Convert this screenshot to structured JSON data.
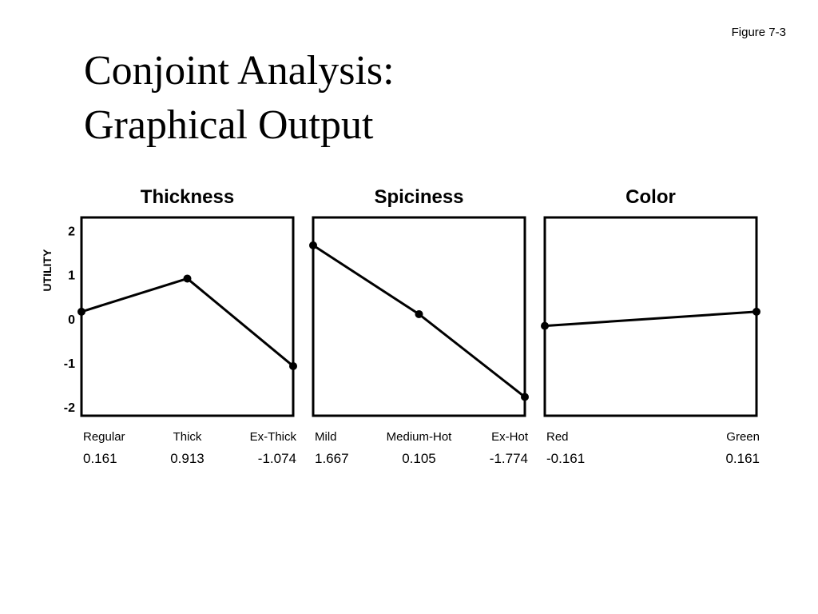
{
  "header": {
    "figure_label": "Figure 7-3",
    "title_line1": "Conjoint Analysis:",
    "title_line2": "Graphical Output"
  },
  "chart_data": [
    {
      "type": "line",
      "title": "Thickness",
      "ylabel": "UTILITY",
      "categories": [
        "Regular",
        "Thick",
        "Ex-Thick"
      ],
      "values": [
        0.161,
        0.913,
        -1.074
      ],
      "value_labels": [
        "0.161",
        "0.913",
        "-1.074"
      ],
      "yticks": [
        2,
        1,
        0,
        -1,
        -2
      ],
      "ylim": [
        -2.2,
        2.3
      ],
      "grid": false
    },
    {
      "type": "line",
      "title": "Spiciness",
      "categories": [
        "Mild",
        "Medium-Hot",
        "Ex-Hot"
      ],
      "values": [
        1.667,
        0.105,
        -1.774
      ],
      "value_labels": [
        "1.667",
        "0.105",
        "-1.774"
      ],
      "ylim": [
        -2.2,
        2.3
      ],
      "grid": false
    },
    {
      "type": "line",
      "title": "Color",
      "categories": [
        "Red",
        "Green"
      ],
      "values": [
        -0.161,
        0.161
      ],
      "value_labels": [
        "-0.161",
        "0.161"
      ],
      "ylim": [
        -2.2,
        2.3
      ],
      "grid": false
    }
  ]
}
